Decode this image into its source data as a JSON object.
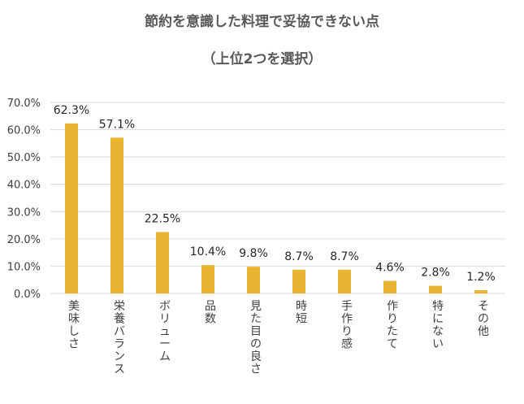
{
  "chart_data": {
    "type": "bar",
    "title": "節約を意識した料理で妥協できない点",
    "subtitle": "（上位2つを選択）",
    "categories": [
      "美味しさ",
      "栄養バランス",
      "ボリューム",
      "品数",
      "見た目の良さ",
      "時短",
      "手作り感",
      "作りたて",
      "特にない",
      "その他"
    ],
    "values": [
      62.3,
      57.1,
      22.5,
      10.4,
      9.8,
      8.7,
      8.7,
      4.6,
      2.8,
      1.2
    ],
    "data_labels": [
      "62.3%",
      "57.1%",
      "22.5%",
      "10.4%",
      "9.8%",
      "8.7%",
      "8.7%",
      "4.6%",
      "2.8%",
      "1.2%"
    ],
    "yticks": [
      0,
      10,
      20,
      30,
      40,
      50,
      60,
      70
    ],
    "ytick_labels": [
      "0.0%",
      "10.0%",
      "20.0%",
      "30.0%",
      "40.0%",
      "50.0%",
      "60.0%",
      "70.0%"
    ],
    "ylim": [
      0,
      70
    ],
    "xlabel": "",
    "ylabel": "",
    "grid": true,
    "bar_color": "#EAB433",
    "grid_color": "#D9D9D9"
  }
}
